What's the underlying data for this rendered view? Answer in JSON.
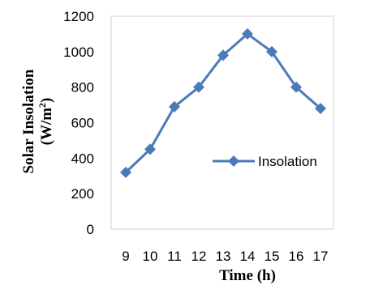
{
  "chart_data": {
    "type": "line",
    "x": [
      9,
      10,
      11,
      12,
      13,
      14,
      15,
      16,
      17
    ],
    "categories": [
      "9",
      "10",
      "11",
      "12",
      "13",
      "14",
      "15",
      "16",
      "17"
    ],
    "series": [
      {
        "name": "Insolation",
        "values": [
          320,
          450,
          690,
          800,
          980,
          1100,
          1000,
          800,
          680
        ],
        "color": "#4a7ab8",
        "marker": "diamond"
      }
    ],
    "xlabel": "Time (h)",
    "ylabel": {
      "line1": "Solar Insolation",
      "line2_prefix": "(W/m",
      "line2_sup": "2",
      "line2_suffix": ")"
    },
    "y_ticks": [
      "0",
      "200",
      "400",
      "600",
      "800",
      "1000",
      "1200"
    ],
    "ylim": [
      0,
      1200
    ],
    "grid": false,
    "legend_position": "right-middle inside plot"
  }
}
